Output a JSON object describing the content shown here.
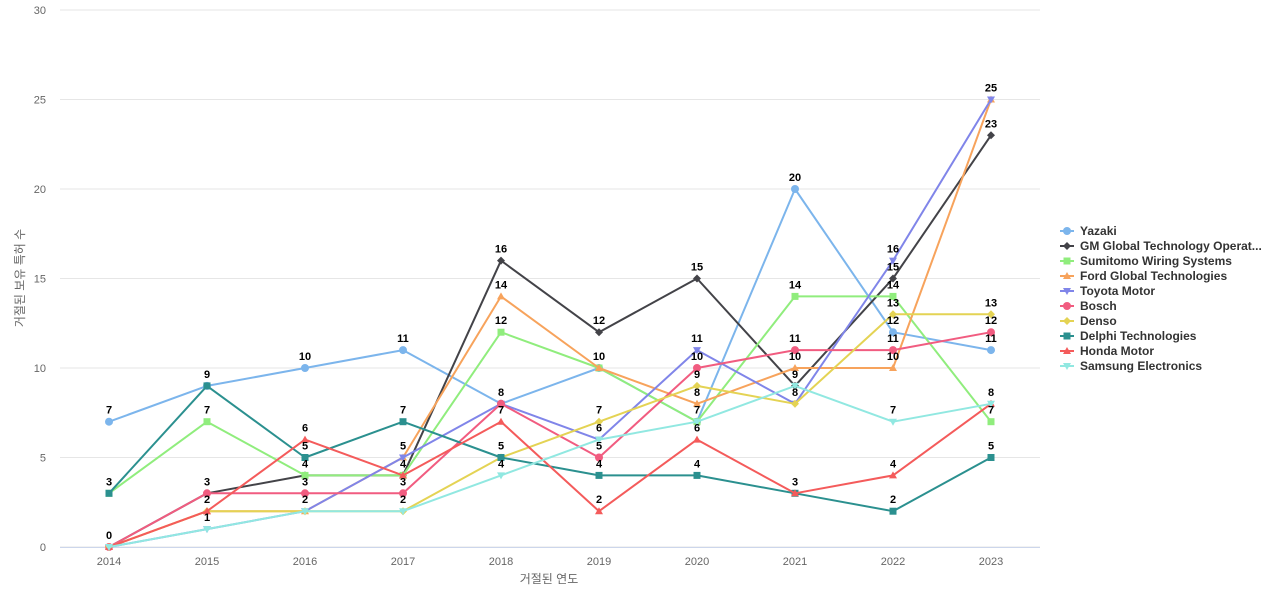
{
  "chart_data": {
    "type": "line",
    "xlabel": "거절된 연도",
    "ylabel": "거절된 보유 특허 수",
    "ylim": [
      0,
      30
    ],
    "yticks": [
      0,
      5,
      10,
      15,
      20,
      25,
      30
    ],
    "grid": true,
    "legend_position": "right",
    "categories": [
      "2014",
      "2015",
      "2016",
      "2017",
      "2018",
      "2019",
      "2020",
      "2021",
      "2022",
      "2023"
    ],
    "series": [
      {
        "name": "Yazaki",
        "color": "#7cb5ec",
        "marker": "circle",
        "values": [
          7,
          9,
          10,
          11,
          8,
          10,
          7,
          20,
          12,
          11
        ]
      },
      {
        "name": "GM Global Technology Operat...",
        "color": "#434348",
        "marker": "diamond",
        "values": [
          0,
          3,
          4,
          4,
          16,
          12,
          15,
          9,
          15,
          23
        ]
      },
      {
        "name": "Sumitomo Wiring Systems",
        "color": "#90ed7d",
        "marker": "square",
        "values": [
          3,
          7,
          4,
          4,
          12,
          10,
          7,
          14,
          14,
          7
        ]
      },
      {
        "name": "Ford Global Technologies",
        "color": "#f7a35c",
        "marker": "triangle",
        "values": [
          0,
          2,
          2,
          5,
          14,
          10,
          8,
          10,
          10,
          25
        ]
      },
      {
        "name": "Toyota Motor",
        "color": "#8085e9",
        "marker": "triangle-down",
        "values": [
          0,
          1,
          2,
          5,
          8,
          6,
          11,
          8,
          16,
          25
        ]
      },
      {
        "name": "Bosch",
        "color": "#f15c80",
        "marker": "circle",
        "values": [
          0,
          3,
          3,
          3,
          8,
          5,
          10,
          11,
          11,
          12
        ]
      },
      {
        "name": "Denso",
        "color": "#e4d354",
        "marker": "diamond",
        "values": [
          0,
          2,
          2,
          2,
          5,
          7,
          9,
          8,
          13,
          13
        ]
      },
      {
        "name": "Delphi Technologies",
        "color": "#2b908f",
        "marker": "square",
        "values": [
          3,
          9,
          5,
          7,
          5,
          4,
          4,
          3,
          2,
          5
        ]
      },
      {
        "name": "Honda Motor",
        "color": "#f45b5b",
        "marker": "triangle",
        "values": [
          0,
          2,
          6,
          4,
          7,
          2,
          6,
          3,
          4,
          8
        ]
      },
      {
        "name": "Samsung Electronics",
        "color": "#91e8e1",
        "marker": "triangle-down",
        "values": [
          0,
          1,
          2,
          2,
          4,
          6,
          7,
          9,
          7,
          8
        ]
      }
    ]
  }
}
